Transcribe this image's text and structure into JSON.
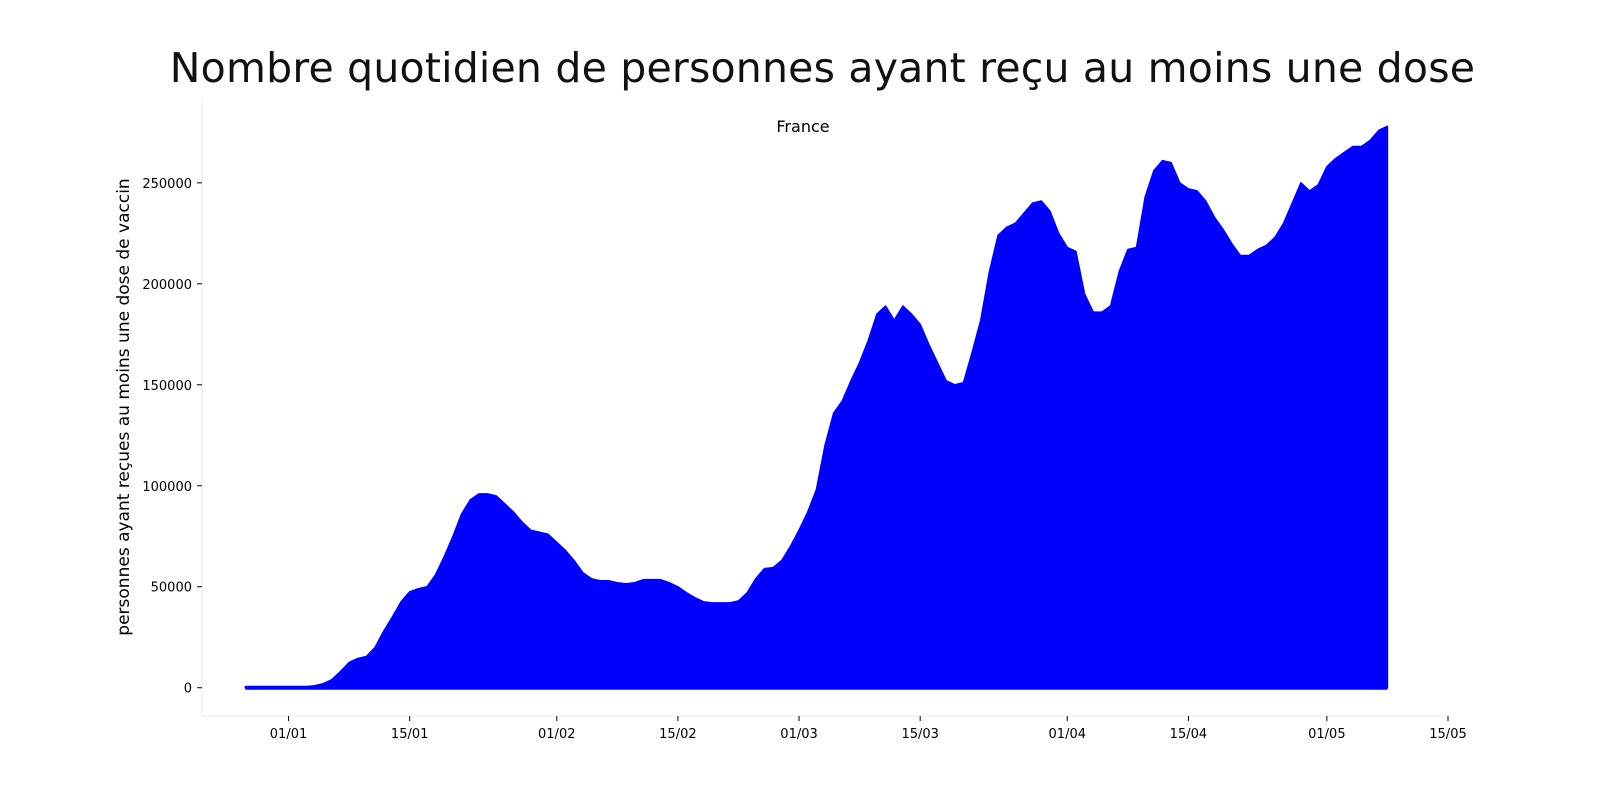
{
  "chart_data": {
    "type": "area",
    "title": "Nombre quotidien de personnes ayant reçu au moins une dose",
    "subtitle": "France",
    "ylabel": "personnes ayant reçues au moins une dose de vaccin",
    "xlabel": "",
    "series_color": "#0000ff",
    "grid": false,
    "xlim": [
      "2020-12-22",
      "2021-05-15"
    ],
    "ylim": [
      -14000,
      292000
    ],
    "x_ticks": [
      {
        "date": "2021-01-01",
        "label": "01/01"
      },
      {
        "date": "2021-01-15",
        "label": "15/01"
      },
      {
        "date": "2021-02-01",
        "label": "01/02"
      },
      {
        "date": "2021-02-15",
        "label": "15/02"
      },
      {
        "date": "2021-03-01",
        "label": "01/03"
      },
      {
        "date": "2021-03-15",
        "label": "15/03"
      },
      {
        "date": "2021-04-01",
        "label": "01/04"
      },
      {
        "date": "2021-04-15",
        "label": "15/04"
      },
      {
        "date": "2021-05-01",
        "label": "01/05"
      },
      {
        "date": "2021-05-15",
        "label": "15/05"
      }
    ],
    "y_ticks": [
      {
        "value": 0,
        "label": "0"
      },
      {
        "value": 50000,
        "label": "50000"
      },
      {
        "value": 100000,
        "label": "100000"
      },
      {
        "value": 150000,
        "label": "150000"
      },
      {
        "value": 200000,
        "label": "200000"
      },
      {
        "value": 250000,
        "label": "250000"
      }
    ],
    "points": [
      [
        "2020-12-27",
        500
      ],
      [
        "2021-01-03",
        500
      ],
      [
        "2021-01-04",
        1000
      ],
      [
        "2021-01-05",
        2000
      ],
      [
        "2021-01-06",
        4000
      ],
      [
        "2021-01-07",
        8000
      ],
      [
        "2021-01-08",
        12500
      ],
      [
        "2021-01-09",
        14500
      ],
      [
        "2021-01-10",
        15500
      ],
      [
        "2021-01-11",
        20000
      ],
      [
        "2021-01-12",
        28000
      ],
      [
        "2021-01-13",
        35000
      ],
      [
        "2021-01-14",
        42500
      ],
      [
        "2021-01-15",
        47500
      ],
      [
        "2021-01-16",
        49000
      ],
      [
        "2021-01-17",
        50000
      ],
      [
        "2021-01-18",
        56000
      ],
      [
        "2021-01-19",
        65000
      ],
      [
        "2021-01-20",
        75000
      ],
      [
        "2021-01-21",
        86000
      ],
      [
        "2021-01-22",
        93000
      ],
      [
        "2021-01-23",
        96000
      ],
      [
        "2021-01-24",
        96000
      ],
      [
        "2021-01-25",
        95000
      ],
      [
        "2021-01-26",
        91000
      ],
      [
        "2021-01-27",
        87000
      ],
      [
        "2021-01-28",
        82000
      ],
      [
        "2021-01-29",
        78000
      ],
      [
        "2021-01-30",
        77000
      ],
      [
        "2021-01-31",
        76000
      ],
      [
        "2021-02-01",
        72000
      ],
      [
        "2021-02-02",
        68000
      ],
      [
        "2021-02-03",
        63000
      ],
      [
        "2021-02-04",
        57000
      ],
      [
        "2021-02-05",
        54000
      ],
      [
        "2021-02-06",
        53000
      ],
      [
        "2021-02-07",
        53000
      ],
      [
        "2021-02-08",
        52000
      ],
      [
        "2021-02-09",
        51500
      ],
      [
        "2021-02-10",
        52000
      ],
      [
        "2021-02-11",
        53500
      ],
      [
        "2021-02-12",
        53500
      ],
      [
        "2021-02-13",
        53500
      ],
      [
        "2021-02-14",
        52000
      ],
      [
        "2021-02-15",
        50000
      ],
      [
        "2021-02-16",
        47000
      ],
      [
        "2021-02-17",
        44500
      ],
      [
        "2021-02-18",
        42500
      ],
      [
        "2021-02-19",
        42000
      ],
      [
        "2021-02-20",
        42000
      ],
      [
        "2021-02-21",
        42000
      ],
      [
        "2021-02-22",
        43000
      ],
      [
        "2021-02-23",
        47000
      ],
      [
        "2021-02-24",
        54000
      ],
      [
        "2021-02-25",
        59000
      ],
      [
        "2021-02-26",
        59500
      ],
      [
        "2021-02-27",
        63000
      ],
      [
        "2021-02-28",
        70000
      ],
      [
        "2021-03-01",
        78000
      ],
      [
        "2021-03-02",
        87000
      ],
      [
        "2021-03-03",
        98000
      ],
      [
        "2021-03-04",
        120000
      ],
      [
        "2021-03-05",
        136000
      ],
      [
        "2021-03-06",
        142000
      ],
      [
        "2021-03-07",
        152000
      ],
      [
        "2021-03-08",
        161000
      ],
      [
        "2021-03-09",
        172000
      ],
      [
        "2021-03-10",
        185000
      ],
      [
        "2021-03-11",
        189000
      ],
      [
        "2021-03-12",
        182000
      ],
      [
        "2021-03-13",
        189000
      ],
      [
        "2021-03-14",
        185000
      ],
      [
        "2021-03-15",
        180000
      ],
      [
        "2021-03-16",
        170000
      ],
      [
        "2021-03-17",
        161000
      ],
      [
        "2021-03-18",
        152000
      ],
      [
        "2021-03-19",
        150000
      ],
      [
        "2021-03-20",
        151000
      ],
      [
        "2021-03-21",
        166000
      ],
      [
        "2021-03-22",
        182000
      ],
      [
        "2021-03-23",
        206000
      ],
      [
        "2021-03-24",
        224000
      ],
      [
        "2021-03-25",
        228000
      ],
      [
        "2021-03-26",
        230000
      ],
      [
        "2021-03-27",
        235000
      ],
      [
        "2021-03-28",
        240000
      ],
      [
        "2021-03-29",
        241000
      ],
      [
        "2021-03-30",
        236000
      ],
      [
        "2021-03-31",
        225000
      ],
      [
        "2021-04-01",
        218000
      ],
      [
        "2021-04-02",
        216000
      ],
      [
        "2021-04-03",
        195000
      ],
      [
        "2021-04-04",
        186000
      ],
      [
        "2021-04-05",
        186000
      ],
      [
        "2021-04-06",
        189000
      ],
      [
        "2021-04-07",
        206000
      ],
      [
        "2021-04-08",
        217000
      ],
      [
        "2021-04-09",
        218000
      ],
      [
        "2021-04-10",
        243000
      ],
      [
        "2021-04-11",
        256000
      ],
      [
        "2021-04-12",
        261000
      ],
      [
        "2021-04-13",
        260000
      ],
      [
        "2021-04-14",
        250000
      ],
      [
        "2021-04-15",
        247000
      ],
      [
        "2021-04-16",
        246000
      ],
      [
        "2021-04-17",
        241000
      ],
      [
        "2021-04-18",
        233000
      ],
      [
        "2021-04-19",
        227000
      ],
      [
        "2021-04-20",
        220000
      ],
      [
        "2021-04-21",
        214000
      ],
      [
        "2021-04-22",
        214000
      ],
      [
        "2021-04-23",
        217000
      ],
      [
        "2021-04-24",
        219000
      ],
      [
        "2021-04-25",
        223000
      ],
      [
        "2021-04-26",
        230000
      ],
      [
        "2021-04-27",
        240000
      ],
      [
        "2021-04-28",
        250000
      ],
      [
        "2021-04-29",
        246000
      ],
      [
        "2021-04-30",
        249000
      ],
      [
        "2021-05-01",
        258000
      ],
      [
        "2021-05-02",
        262000
      ],
      [
        "2021-05-03",
        265000
      ],
      [
        "2021-05-04",
        268000
      ],
      [
        "2021-05-05",
        268000
      ],
      [
        "2021-05-06",
        271000
      ],
      [
        "2021-05-07",
        276000
      ],
      [
        "2021-05-08",
        278000
      ]
    ]
  }
}
